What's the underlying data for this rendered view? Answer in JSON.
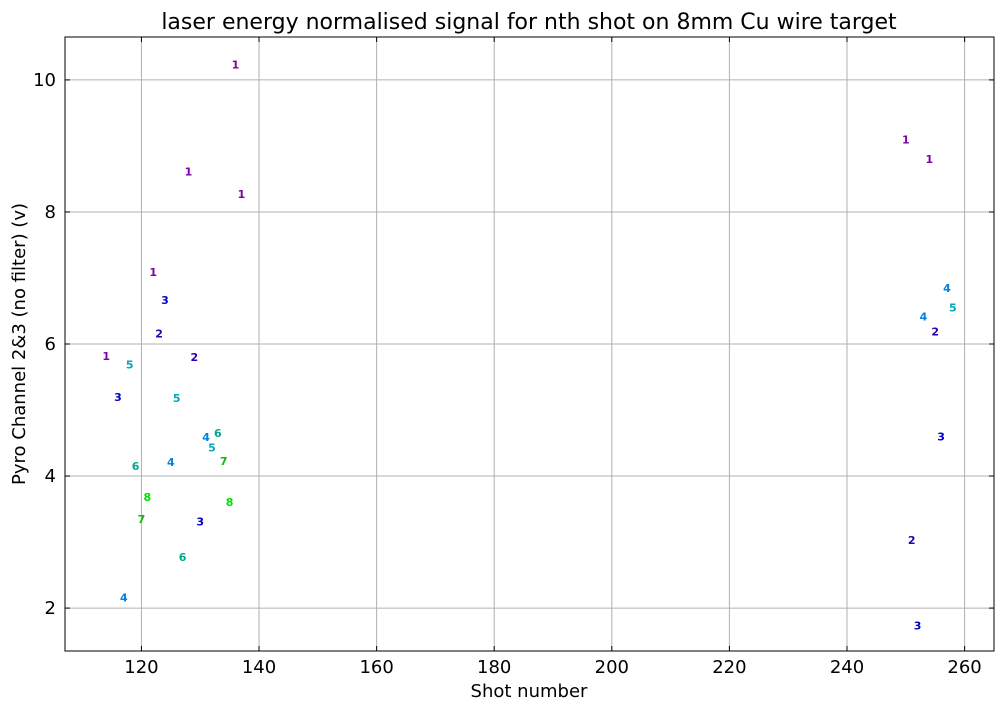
{
  "chart_data": {
    "type": "scatter",
    "title": "laser energy normalised signal for nth shot on 8mm Cu wire target",
    "xlabel": "Shot number",
    "ylabel": "Pyro Channel 2&3 (no filter) (v)",
    "xlim": [
      107,
      265
    ],
    "ylim": [
      1.35,
      10.65
    ],
    "xticks": [
      120,
      140,
      160,
      180,
      200,
      220,
      240,
      260
    ],
    "yticks": [
      2,
      4,
      6,
      8,
      10
    ],
    "grid": true,
    "marker_colors": {
      "1": "#7f00a8",
      "2": "#2a00b0",
      "3": "#0000c8",
      "4": "#0080e0",
      "5": "#00a8b8",
      "6": "#00a890",
      "7": "#10b810",
      "8": "#00e000"
    },
    "points": [
      {
        "x": 114,
        "y": 5.82,
        "label": "1"
      },
      {
        "x": 116,
        "y": 5.2,
        "label": "3"
      },
      {
        "x": 117,
        "y": 2.16,
        "label": "4"
      },
      {
        "x": 118,
        "y": 5.69,
        "label": "5"
      },
      {
        "x": 119,
        "y": 4.15,
        "label": "6"
      },
      {
        "x": 120,
        "y": 3.35,
        "label": "7"
      },
      {
        "x": 121,
        "y": 3.68,
        "label": "8"
      },
      {
        "x": 122,
        "y": 7.09,
        "label": "1"
      },
      {
        "x": 123,
        "y": 6.16,
        "label": "2"
      },
      {
        "x": 124,
        "y": 6.67,
        "label": "3"
      },
      {
        "x": 125,
        "y": 4.21,
        "label": "4"
      },
      {
        "x": 126,
        "y": 5.18,
        "label": "5"
      },
      {
        "x": 127,
        "y": 2.77,
        "label": "6"
      },
      {
        "x": 128,
        "y": 8.61,
        "label": "1"
      },
      {
        "x": 129,
        "y": 5.8,
        "label": "2"
      },
      {
        "x": 130,
        "y": 3.31,
        "label": "3"
      },
      {
        "x": 131,
        "y": 4.59,
        "label": "4"
      },
      {
        "x": 132,
        "y": 4.43,
        "label": "5"
      },
      {
        "x": 133,
        "y": 4.65,
        "label": "6"
      },
      {
        "x": 134,
        "y": 4.23,
        "label": "7"
      },
      {
        "x": 135,
        "y": 3.61,
        "label": "8"
      },
      {
        "x": 136,
        "y": 10.23,
        "label": "1"
      },
      {
        "x": 137,
        "y": 8.27,
        "label": "1"
      },
      {
        "x": 250,
        "y": 9.1,
        "label": "1"
      },
      {
        "x": 251,
        "y": 3.03,
        "label": "2"
      },
      {
        "x": 252,
        "y": 1.74,
        "label": "3"
      },
      {
        "x": 253,
        "y": 6.42,
        "label": "4"
      },
      {
        "x": 254,
        "y": 8.8,
        "label": "1"
      },
      {
        "x": 255,
        "y": 6.19,
        "label": "2"
      },
      {
        "x": 256,
        "y": 4.6,
        "label": "3"
      },
      {
        "x": 257,
        "y": 6.85,
        "label": "4"
      },
      {
        "x": 258,
        "y": 6.55,
        "label": "5"
      }
    ]
  }
}
